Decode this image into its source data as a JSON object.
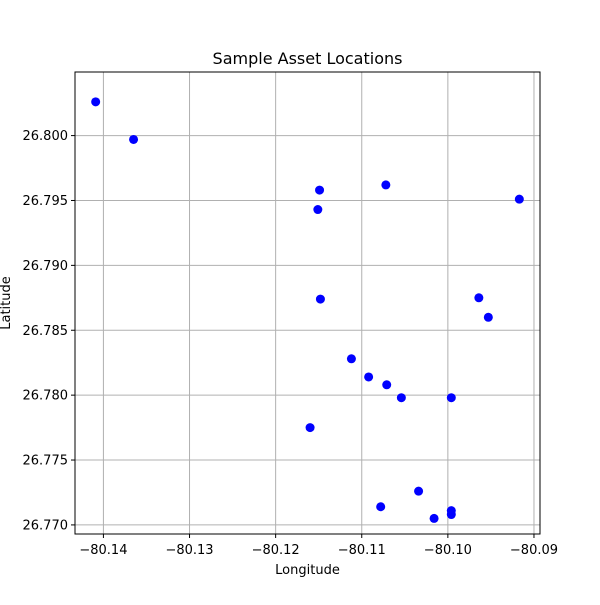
{
  "chart_data": {
    "type": "scatter",
    "title": "Sample Asset Locations",
    "xlabel": "Longitude",
    "ylabel": "Latitude",
    "xlim": [
      -80.1433,
      -80.0893
    ],
    "ylim": [
      26.7693,
      26.8049
    ],
    "xticks": [
      -80.14,
      -80.13,
      -80.12,
      -80.11,
      -80.1,
      -80.09
    ],
    "xtick_labels": [
      "−80.14",
      "−80.13",
      "−80.12",
      "−80.11",
      "−80.10",
      "−80.09"
    ],
    "yticks": [
      26.77,
      26.775,
      26.78,
      26.785,
      26.79,
      26.795,
      26.8
    ],
    "ytick_labels": [
      "26.770",
      "26.775",
      "26.780",
      "26.785",
      "26.790",
      "26.795",
      "26.800"
    ],
    "grid": true,
    "marker_color": "#0000ff",
    "points": [
      {
        "x": -80.1409,
        "y": 26.8026
      },
      {
        "x": -80.1365,
        "y": 26.7997
      },
      {
        "x": -80.1149,
        "y": 26.7958
      },
      {
        "x": -80.1072,
        "y": 26.7962
      },
      {
        "x": -80.1151,
        "y": 26.7943
      },
      {
        "x": -80.0917,
        "y": 26.7951
      },
      {
        "x": -80.1148,
        "y": 26.7874
      },
      {
        "x": -80.0964,
        "y": 26.7875
      },
      {
        "x": -80.0953,
        "y": 26.786
      },
      {
        "x": -80.1112,
        "y": 26.7828
      },
      {
        "x": -80.1092,
        "y": 26.7814
      },
      {
        "x": -80.1071,
        "y": 26.7808
      },
      {
        "x": -80.1054,
        "y": 26.7798
      },
      {
        "x": -80.0996,
        "y": 26.7798
      },
      {
        "x": -80.116,
        "y": 26.7775
      },
      {
        "x": -80.1034,
        "y": 26.7726
      },
      {
        "x": -80.1078,
        "y": 26.7714
      },
      {
        "x": -80.0996,
        "y": 26.7711
      },
      {
        "x": -80.0996,
        "y": 26.7708
      },
      {
        "x": -80.1016,
        "y": 26.7705
      }
    ]
  }
}
